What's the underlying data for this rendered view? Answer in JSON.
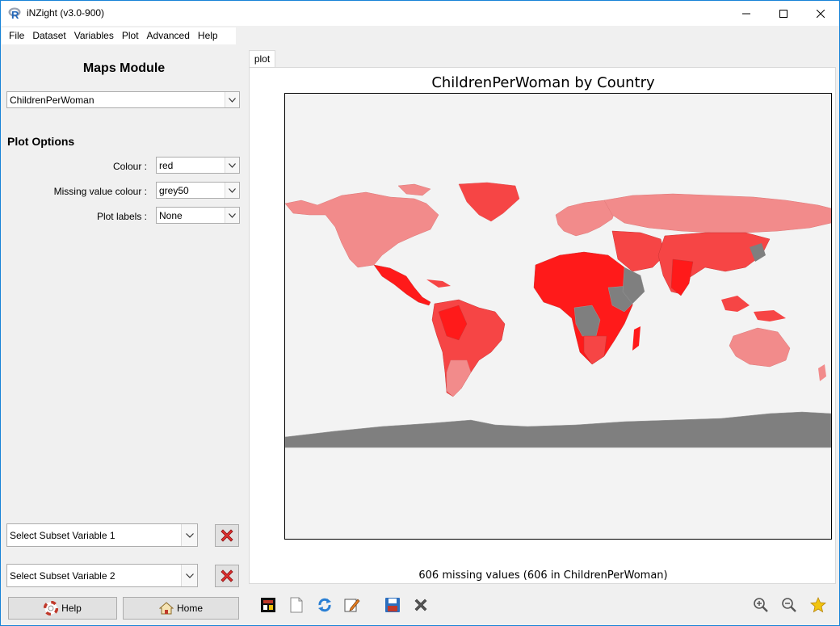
{
  "window": {
    "title": "iNZight (v3.0-900)",
    "minimize_label": "—",
    "maximize_label": "☐",
    "close_label": "✕"
  },
  "menu": [
    "File",
    "Dataset",
    "Variables",
    "Plot",
    "Advanced",
    "Help"
  ],
  "left_panel": {
    "module_title": "Maps Module",
    "variable_select": "ChildrenPerWoman",
    "plot_options_title": "Plot Options",
    "options": [
      {
        "label": "Colour :",
        "value": "red"
      },
      {
        "label": "Missing value colour :",
        "value": "grey50"
      },
      {
        "label": "Plot labels :",
        "value": "None"
      }
    ],
    "subset1": "Select Subset Variable 1",
    "subset2": "Select Subset Variable 2",
    "help_label": "Help",
    "home_label": "Home"
  },
  "plot": {
    "tab_label": "plot",
    "title": "ChildrenPerWoman by Country",
    "footer": "606 missing values (606 in ChildrenPerWoman)",
    "fill_colors": {
      "background": "#f3f3f3",
      "missing": "#7f7f7f",
      "light": "#f28b8b",
      "mid": "#f64545",
      "high": "#ff1a1a"
    }
  },
  "toolbar_icons": [
    "export-icon",
    "new-page-icon",
    "refresh-icon",
    "edit-icon",
    "save-icon",
    "close-icon",
    "zoom-in-icon",
    "zoom-out-icon",
    "star-icon"
  ]
}
